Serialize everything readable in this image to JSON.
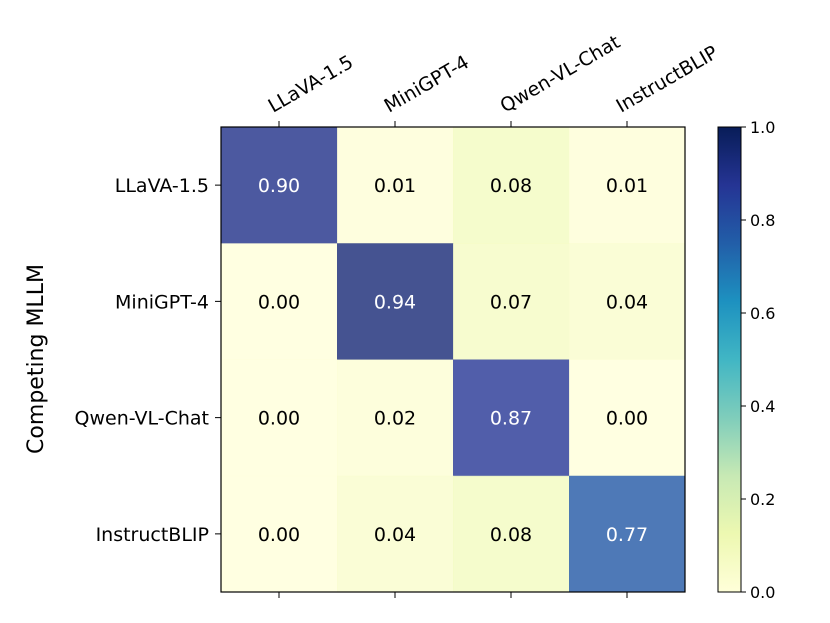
{
  "chart_data": {
    "type": "heatmap",
    "title": "",
    "xlabel": "",
    "ylabel": "Competing MLLM",
    "x_categories": [
      "LLaVA-1.5",
      "MiniGPT-4",
      "Qwen-VL-Chat",
      "InstructBLIP"
    ],
    "y_categories": [
      "LLaVA-1.5",
      "MiniGPT-4",
      "Qwen-VL-Chat",
      "InstructBLIP"
    ],
    "values": [
      [
        0.9,
        0.01,
        0.08,
        0.01
      ],
      [
        0.0,
        0.94,
        0.07,
        0.04
      ],
      [
        0.0,
        0.02,
        0.87,
        0.0
      ],
      [
        0.0,
        0.04,
        0.08,
        0.77
      ]
    ],
    "colorbar": {
      "colormap": "YlGnBu",
      "range": [
        0.0,
        1.0
      ],
      "ticks": [
        "0.0",
        "0.2",
        "0.4",
        "0.6",
        "0.8",
        "1.0"
      ]
    },
    "x_tick_position": "top",
    "grid": false
  }
}
